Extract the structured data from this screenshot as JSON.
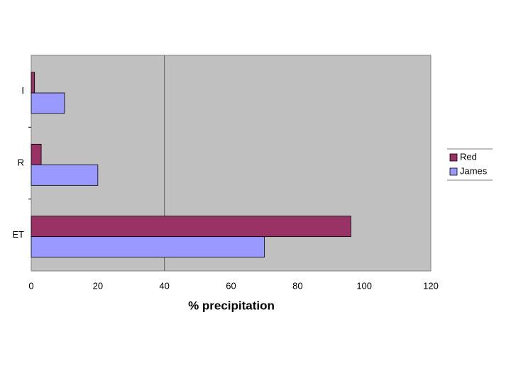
{
  "chart_data": {
    "type": "hbar",
    "x_label": "% precipitation",
    "categories": [
      "I",
      "R",
      "ET"
    ],
    "series": [
      {
        "name": "Red",
        "color": "#993366",
        "values": [
          1,
          3,
          96
        ]
      },
      {
        "name": "James",
        "color": "#9999ff",
        "values": [
          10,
          20,
          70
        ]
      }
    ],
    "xlim": [
      0,
      120
    ],
    "xticks": [
      0,
      20,
      40,
      60,
      80,
      100,
      120
    ],
    "grid_lines": [
      40
    ],
    "legend": "right"
  }
}
